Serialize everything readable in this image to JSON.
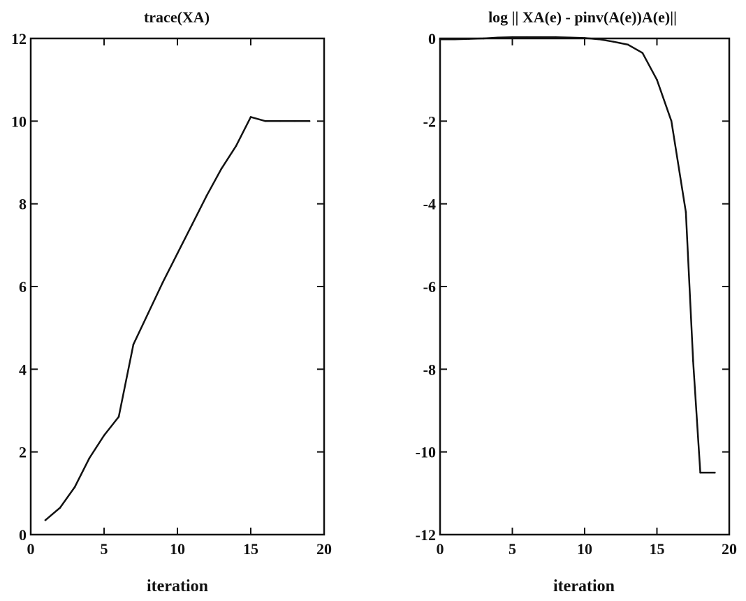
{
  "chart_data": [
    {
      "type": "line",
      "title": "trace(XA)",
      "xlabel": "iteration",
      "ylabel": "",
      "xlim": [
        0,
        20
      ],
      "ylim": [
        0,
        12
      ],
      "x_ticks": [
        "0",
        "5",
        "10",
        "15",
        "20"
      ],
      "y_ticks": [
        "0",
        "2",
        "4",
        "6",
        "8",
        "10",
        "12"
      ],
      "grid": false,
      "series": [
        {
          "x": [
            1,
            2,
            3,
            4,
            5,
            6,
            7,
            8,
            9,
            10,
            11,
            12,
            13,
            14,
            15,
            16,
            17,
            18,
            19
          ],
          "y": [
            0.35,
            0.65,
            1.15,
            1.85,
            2.4,
            2.85,
            4.6,
            5.35,
            6.1,
            6.8,
            7.5,
            8.2,
            8.85,
            9.4,
            10.1,
            10.0,
            10.0,
            10.0,
            10.0
          ]
        }
      ]
    },
    {
      "type": "line",
      "title": "log || XA(e) - pinv(A(e))A(e)||",
      "xlabel": "iteration",
      "ylabel": "",
      "xlim": [
        0,
        20
      ],
      "ylim": [
        -12,
        0
      ],
      "x_ticks": [
        "0",
        "5",
        "10",
        "15",
        "20"
      ],
      "y_ticks": [
        "0",
        "-2",
        "-4",
        "-6",
        "-8",
        "-10",
        "-12"
      ],
      "grid": false,
      "series": [
        {
          "x": [
            0,
            1,
            2,
            3,
            4,
            5,
            6,
            7,
            8,
            9,
            10,
            11,
            12,
            13,
            14,
            15,
            16,
            17,
            17.5,
            18,
            19
          ],
          "y": [
            -0.02,
            -0.02,
            -0.01,
            0,
            0.02,
            0.03,
            0.03,
            0.03,
            0.03,
            0.02,
            0.01,
            -0.02,
            -0.08,
            -0.15,
            -0.35,
            -1.0,
            -2.0,
            -4.2,
            -7.8,
            -10.5,
            -10.5
          ]
        }
      ]
    }
  ]
}
